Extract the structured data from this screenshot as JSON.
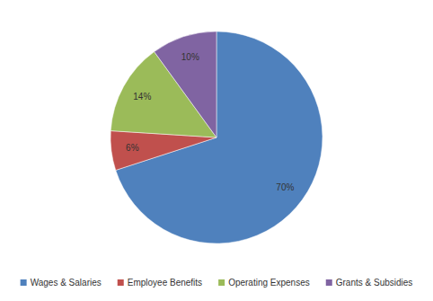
{
  "chart_data": {
    "type": "pie",
    "categories": [
      "Wages & Salaries",
      "Employee Benefits",
      "Operating Expenses",
      "Grants & Subsidies"
    ],
    "values": [
      70,
      6,
      14,
      10
    ],
    "value_labels": [
      "70%",
      "6%",
      "14%",
      "10%"
    ],
    "colors": [
      "#4f81bd",
      "#c0504d",
      "#9bbb59",
      "#8064a2"
    ],
    "data_labels": true,
    "legend": "bottom"
  }
}
